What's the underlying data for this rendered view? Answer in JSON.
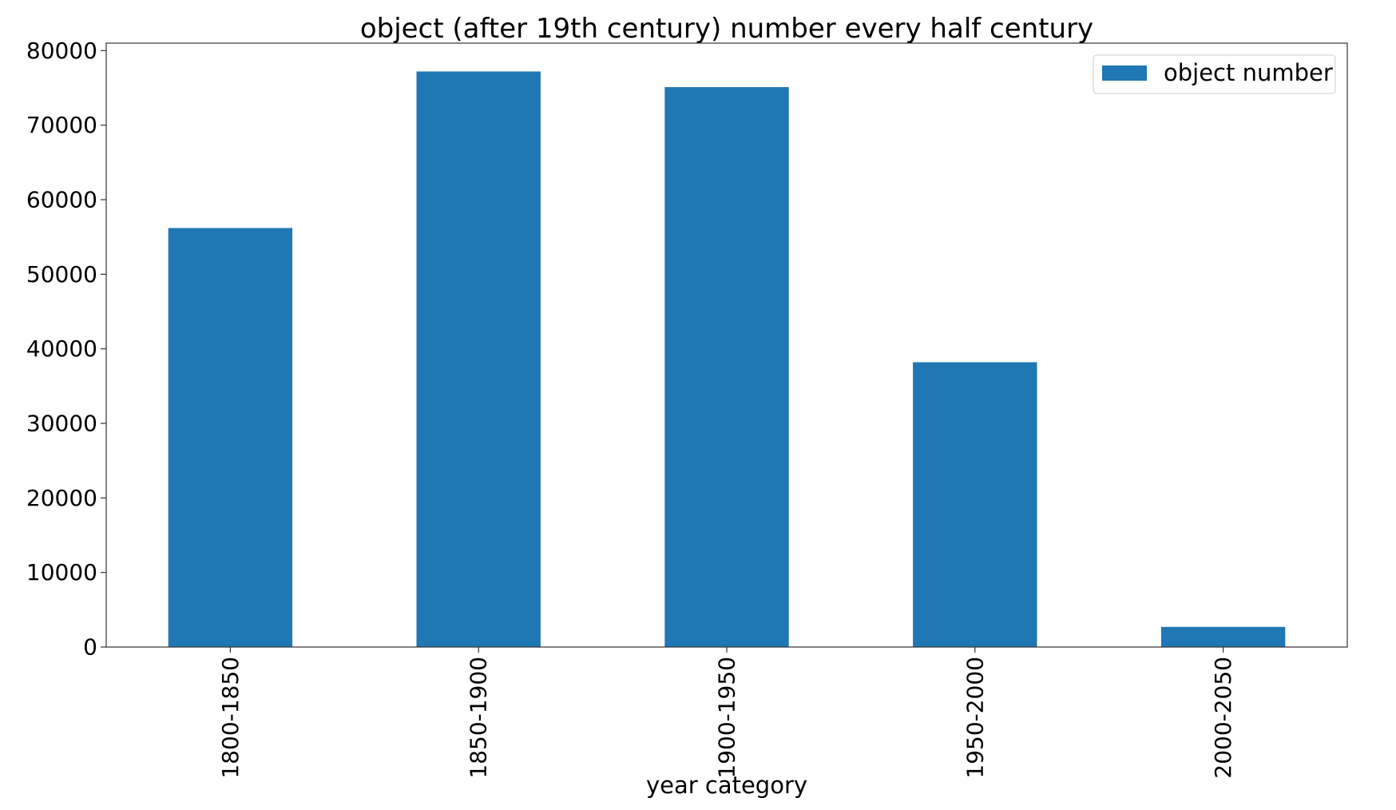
{
  "chart_data": {
    "type": "bar",
    "title": "object (after 19th century) number every half century",
    "xlabel": "year category",
    "ylabel": "",
    "categories": [
      "1800-1850",
      "1850-1900",
      "1900-1950",
      "1950-2000",
      "2000-2050"
    ],
    "series": [
      {
        "name": "object number",
        "values": [
          56200,
          77200,
          75100,
          38200,
          2700
        ],
        "color": "#1f77b4"
      }
    ],
    "ylim": [
      0,
      81000
    ],
    "yticks": [
      0,
      10000,
      20000,
      30000,
      40000,
      50000,
      60000,
      70000,
      80000
    ],
    "ytick_labels": [
      "0",
      "10000",
      "20000",
      "30000",
      "40000",
      "50000",
      "60000",
      "70000",
      "80000"
    ],
    "grid": false,
    "legend_position": "top-right",
    "x_tick_rotation": "vertical"
  }
}
